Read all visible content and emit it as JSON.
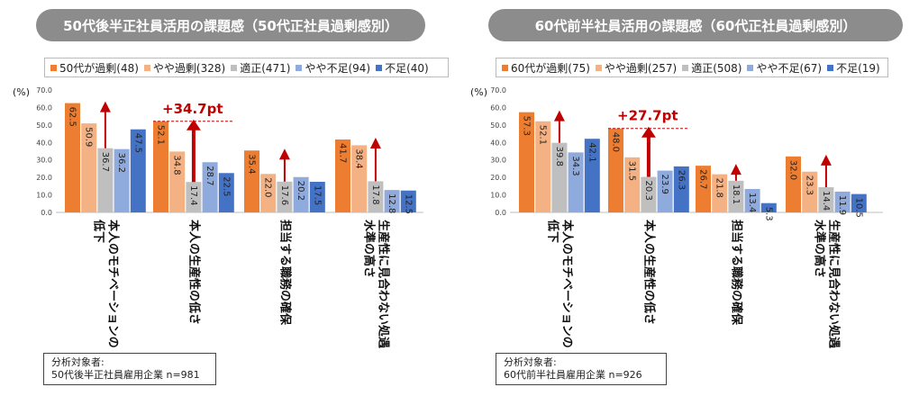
{
  "colors": [
    "#ed7d31",
    "#f4b183",
    "#bfbfbf",
    "#8faadc",
    "#4472c4"
  ],
  "arrow_color": "#c00000",
  "chart_data": [
    {
      "type": "bar",
      "title": "50代後半正社員活用の課題感（50代正社員過剰感別）",
      "ylabel": "(%)",
      "ylim": [
        0,
        70
      ],
      "yticks": [
        "0.0",
        "10.0",
        "20.0",
        "30.0",
        "40.0",
        "50.0",
        "60.0",
        "70.0"
      ],
      "grid": false,
      "legend_position": "top",
      "series": [
        {
          "name": "50代が過剰(48)",
          "values": [
            62.5,
            52.1,
            35.4,
            41.7
          ],
          "labels": [
            "62.5",
            "52.1",
            "35.4",
            "41.7"
          ]
        },
        {
          "name": "やや過剰(328)",
          "values": [
            50.9,
            34.8,
            22.0,
            38.4
          ],
          "labels": [
            "50.9",
            "34.8",
            "22.0",
            "38.4"
          ]
        },
        {
          "name": "適正(471)",
          "values": [
            36.7,
            17.4,
            17.6,
            17.8
          ],
          "labels": [
            "36.7",
            "17.4",
            "17.6",
            "17.8"
          ]
        },
        {
          "name": "やや不足(94)",
          "values": [
            36.2,
            28.7,
            20.2,
            12.8
          ],
          "labels": [
            "36.2",
            "28.7",
            "20.2",
            "12.8"
          ]
        },
        {
          "name": "不足(40)",
          "values": [
            47.5,
            22.5,
            17.5,
            12.5
          ],
          "labels": [
            "47.5",
            "22.5",
            "17.5",
            "12.5"
          ]
        }
      ],
      "categories": [
        [
          "本人のモチベーションの",
          "低下"
        ],
        [
          "本人の生産性の低さ"
        ],
        [
          "担当する職務の確保"
        ],
        [
          "生産性に見合わない処遇",
          "水準の高さ"
        ]
      ],
      "annotation": {
        "text": "+34.7pt",
        "category_index": 1,
        "from": 17.4,
        "to": 52.1
      },
      "note": [
        "分析対象者:",
        "50代後半正社員雇用企業 n=981"
      ]
    },
    {
      "type": "bar",
      "title": "60代前半社員活用の課題感（60代正社員過剰感別）",
      "ylabel": "(%)",
      "ylim": [
        0,
        70
      ],
      "yticks": [
        "0.0",
        "10.0",
        "20.0",
        "30.0",
        "40.0",
        "50.0",
        "60.0",
        "70.0"
      ],
      "grid": false,
      "legend_position": "top",
      "series": [
        {
          "name": "60代が過剰(75)",
          "values": [
            57.3,
            48.0,
            26.7,
            32.0
          ],
          "labels": [
            "57.3",
            "48.0",
            "26.7",
            "32.0"
          ]
        },
        {
          "name": "やや過剰(257)",
          "values": [
            52.1,
            31.5,
            21.8,
            23.3
          ],
          "labels": [
            "52.1",
            "31.5",
            "21.8",
            "23.3"
          ]
        },
        {
          "name": "適正(508)",
          "values": [
            39.8,
            20.3,
            18.1,
            14.4
          ],
          "labels": [
            "39.8",
            "20.3",
            "18.1",
            "14.4"
          ]
        },
        {
          "name": "やや不足(67)",
          "values": [
            34.3,
            23.9,
            13.4,
            11.9
          ],
          "labels": [
            "34.3",
            "23.9",
            "13.4",
            "11.9"
          ]
        },
        {
          "name": "不足(19)",
          "values": [
            42.1,
            26.3,
            5.3,
            10.5
          ],
          "labels": [
            "42.1",
            "26.3",
            "5.3",
            "10.5"
          ]
        }
      ],
      "categories": [
        [
          "本人のモチベーションの",
          "低下"
        ],
        [
          "本人の生産性の低さ"
        ],
        [
          "担当する職務の確保"
        ],
        [
          "生産性に見合わない処遇",
          "水準の高さ"
        ]
      ],
      "annotation": {
        "text": "+27.7pt",
        "category_index": 1,
        "from": 20.3,
        "to": 48.0
      },
      "note": [
        "分析対象者:",
        "60代前半社員雇用企業 n=926"
      ]
    }
  ]
}
